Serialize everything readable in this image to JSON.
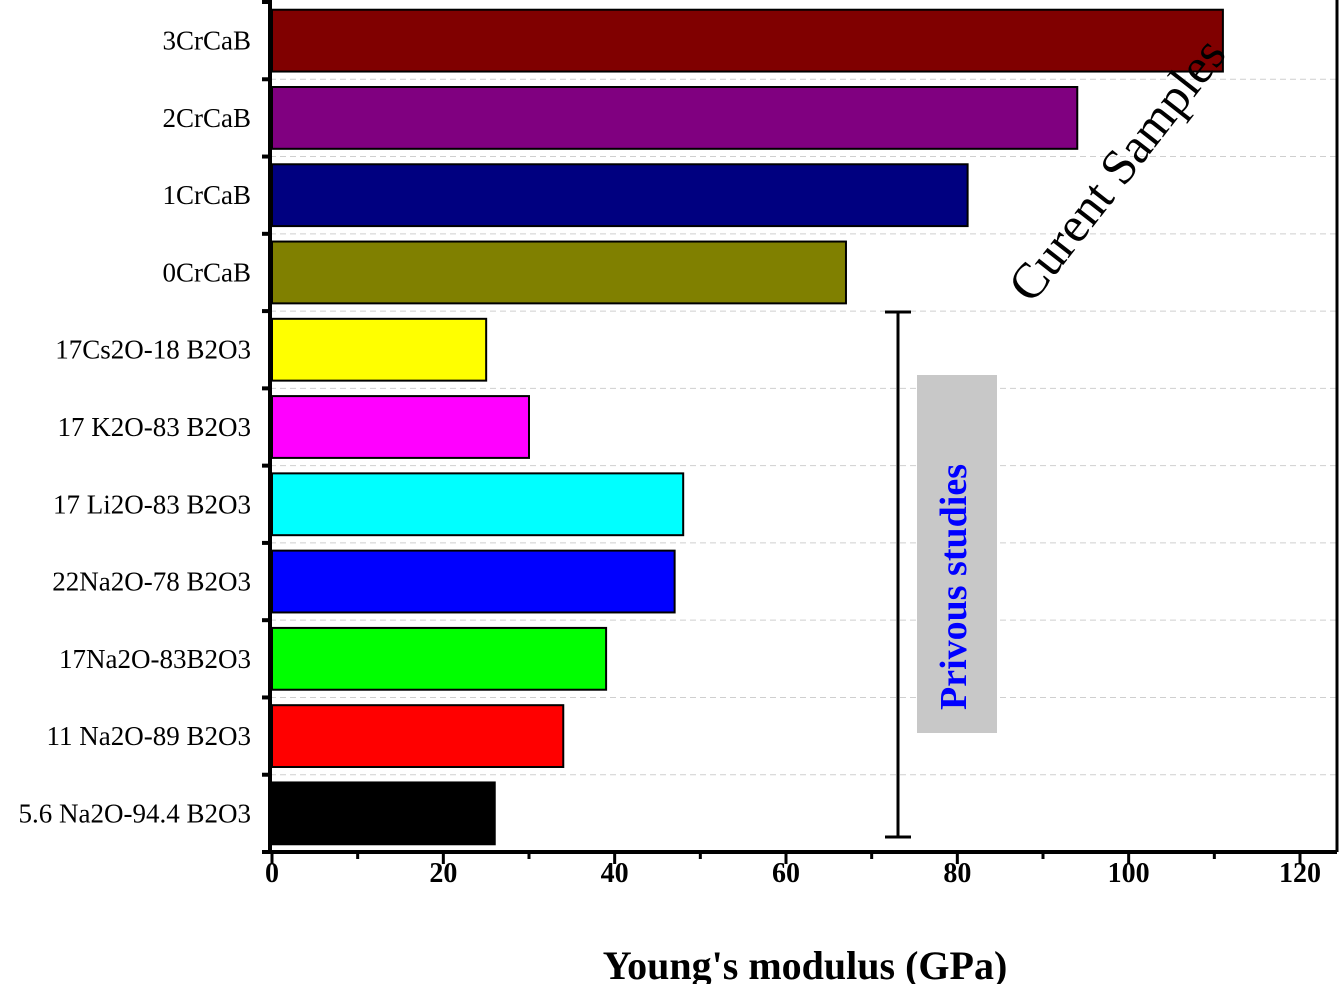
{
  "chart_data": {
    "type": "bar",
    "orientation": "horizontal",
    "title": "",
    "xlabel": "Young's modulus (GPa)",
    "ylabel": "",
    "xlim": [
      0,
      125
    ],
    "xticks": [
      0,
      20,
      40,
      60,
      80,
      100,
      120
    ],
    "grid": "horizontal dashed",
    "categories": [
      "3CrCaB",
      "2CrCaB",
      "1CrCaB",
      "0CrCaB",
      "17Cs2O-18 B2O3",
      "17 K2O-83 B2O3",
      "17 Li2O-83 B2O3",
      "22Na2O-78 B2O3",
      "17Na2O-83B2O3",
      "11 Na2O-89 B2O3",
      "5.6 Na2O-94.4 B2O3"
    ],
    "values": [
      111,
      94,
      81.2,
      67,
      25,
      30,
      48,
      47,
      39,
      34,
      26
    ],
    "colors": [
      "#800000",
      "#800080",
      "#000080",
      "#808000",
      "#ffff00",
      "#ff00ff",
      "#00ffff",
      "#0000ff",
      "#00ff00",
      "#ff0000",
      "#000000"
    ],
    "annotations": {
      "current": "Curent Samples",
      "previous": "Privous studies"
    }
  }
}
